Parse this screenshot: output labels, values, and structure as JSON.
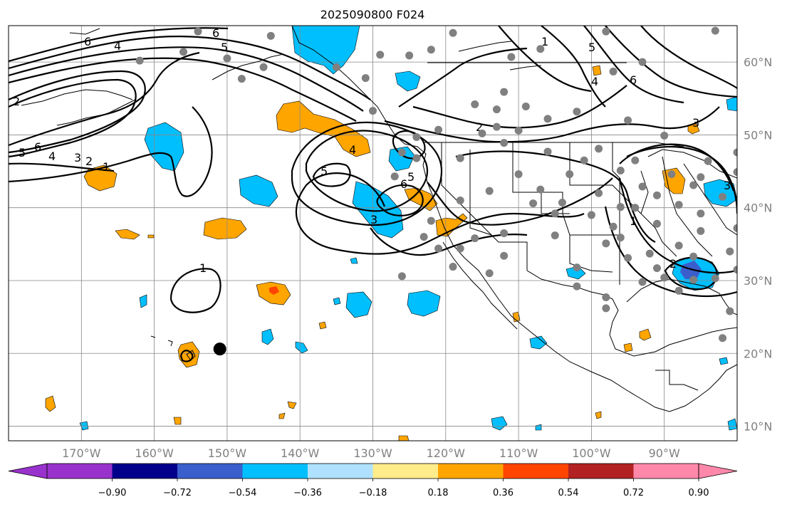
{
  "title": "2025090800 F024",
  "map": {
    "projection": "PlateCarree",
    "extent": {
      "lon_min": -180,
      "lon_max": -80,
      "lat_min": 8,
      "lat_max": 65
    },
    "lon_ticks": [
      {
        "value": -170,
        "label": "170°W"
      },
      {
        "value": -160,
        "label": "160°W"
      },
      {
        "value": -150,
        "label": "150°W"
      },
      {
        "value": -140,
        "label": "140°W"
      },
      {
        "value": -130,
        "label": "130°W"
      },
      {
        "value": -120,
        "label": "120°W"
      },
      {
        "value": -110,
        "label": "110°W"
      },
      {
        "value": -100,
        "label": "100°W"
      },
      {
        "value": -90,
        "label": "90°W"
      }
    ],
    "lat_ticks": [
      {
        "value": 10,
        "label": "10°N"
      },
      {
        "value": 20,
        "label": "20°N"
      },
      {
        "value": 30,
        "label": "30°N"
      },
      {
        "value": 40,
        "label": "40°N"
      },
      {
        "value": 50,
        "label": "50°N"
      },
      {
        "value": 60,
        "label": "60°N"
      }
    ],
    "gridlines": true,
    "marker": {
      "lon": -151,
      "lat": 20.6
    }
  },
  "colorbar": {
    "tick_labels": [
      "−0.90",
      "−0.72",
      "−0.54",
      "−0.36",
      "−0.18",
      "0.18",
      "0.36",
      "0.54",
      "0.72",
      "0.90"
    ],
    "colors": [
      "#9932cc",
      "#00008b",
      "#3a5fcd",
      "#00bfff",
      "#b0e2ff",
      "#ffffff",
      "#ffec8b",
      "#ffa500",
      "#ff4500",
      "#b22222",
      "#ff88aa"
    ],
    "extend": "both"
  },
  "contour_labels": [
    "6",
    "4",
    "5",
    "2",
    "1",
    "3"
  ]
}
